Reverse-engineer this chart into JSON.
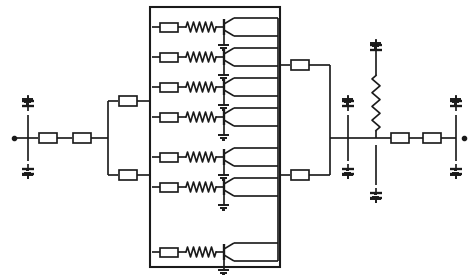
{
  "bg_color": "#ffffff",
  "line_color": "#1a1a1a",
  "lw": 1.2,
  "figsize": [
    4.74,
    2.75
  ],
  "dpi": 100
}
